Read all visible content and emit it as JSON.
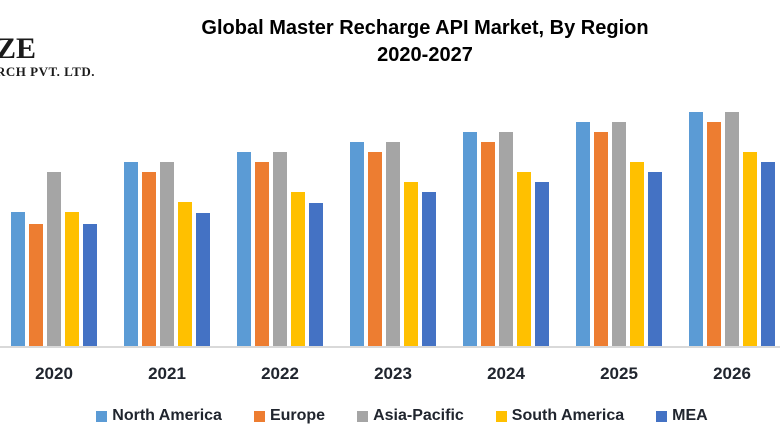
{
  "logo": {
    "line1": "ZE",
    "line2": "RCH PVT. LTD."
  },
  "title": {
    "line1": "Global Master Recharge API Market, By Region",
    "line2": "2020-2027"
  },
  "chart_data": {
    "type": "bar",
    "title": "Global Master Recharge API Market, By Region 2020-2027",
    "categories": [
      "2020",
      "2021",
      "2022",
      "2023",
      "2024",
      "2025",
      "2026"
    ],
    "series": [
      {
        "name": "North America",
        "color": "#5B9BD5",
        "values": [
          134,
          184,
          194,
          204,
          214,
          224,
          234
        ]
      },
      {
        "name": "Europe",
        "color": "#ED7D31",
        "values": [
          122,
          174,
          184,
          194,
          204,
          214,
          224
        ]
      },
      {
        "name": "Asia-Pacific",
        "color": "#A5A5A5",
        "values": [
          174,
          184,
          194,
          204,
          214,
          224,
          234
        ]
      },
      {
        "name": "South America",
        "color": "#FFC000",
        "values": [
          134,
          144,
          154,
          164,
          174,
          184,
          194
        ]
      },
      {
        "name": "MEA",
        "color": "#4472C4",
        "values": [
          122,
          133,
          143,
          154,
          164,
          174,
          184
        ]
      }
    ],
    "xlabel": "",
    "ylabel": "",
    "ylim": [
      0,
      250
    ],
    "units": "relative (no value axis shown)",
    "y_axis_visible": false,
    "gridlines": false,
    "legend_position": "bottom"
  },
  "colors": {
    "background": "#FFFFFF",
    "axis_line": "#D9D9D9",
    "title_text": "#000000",
    "label_text": "#20252E"
  }
}
